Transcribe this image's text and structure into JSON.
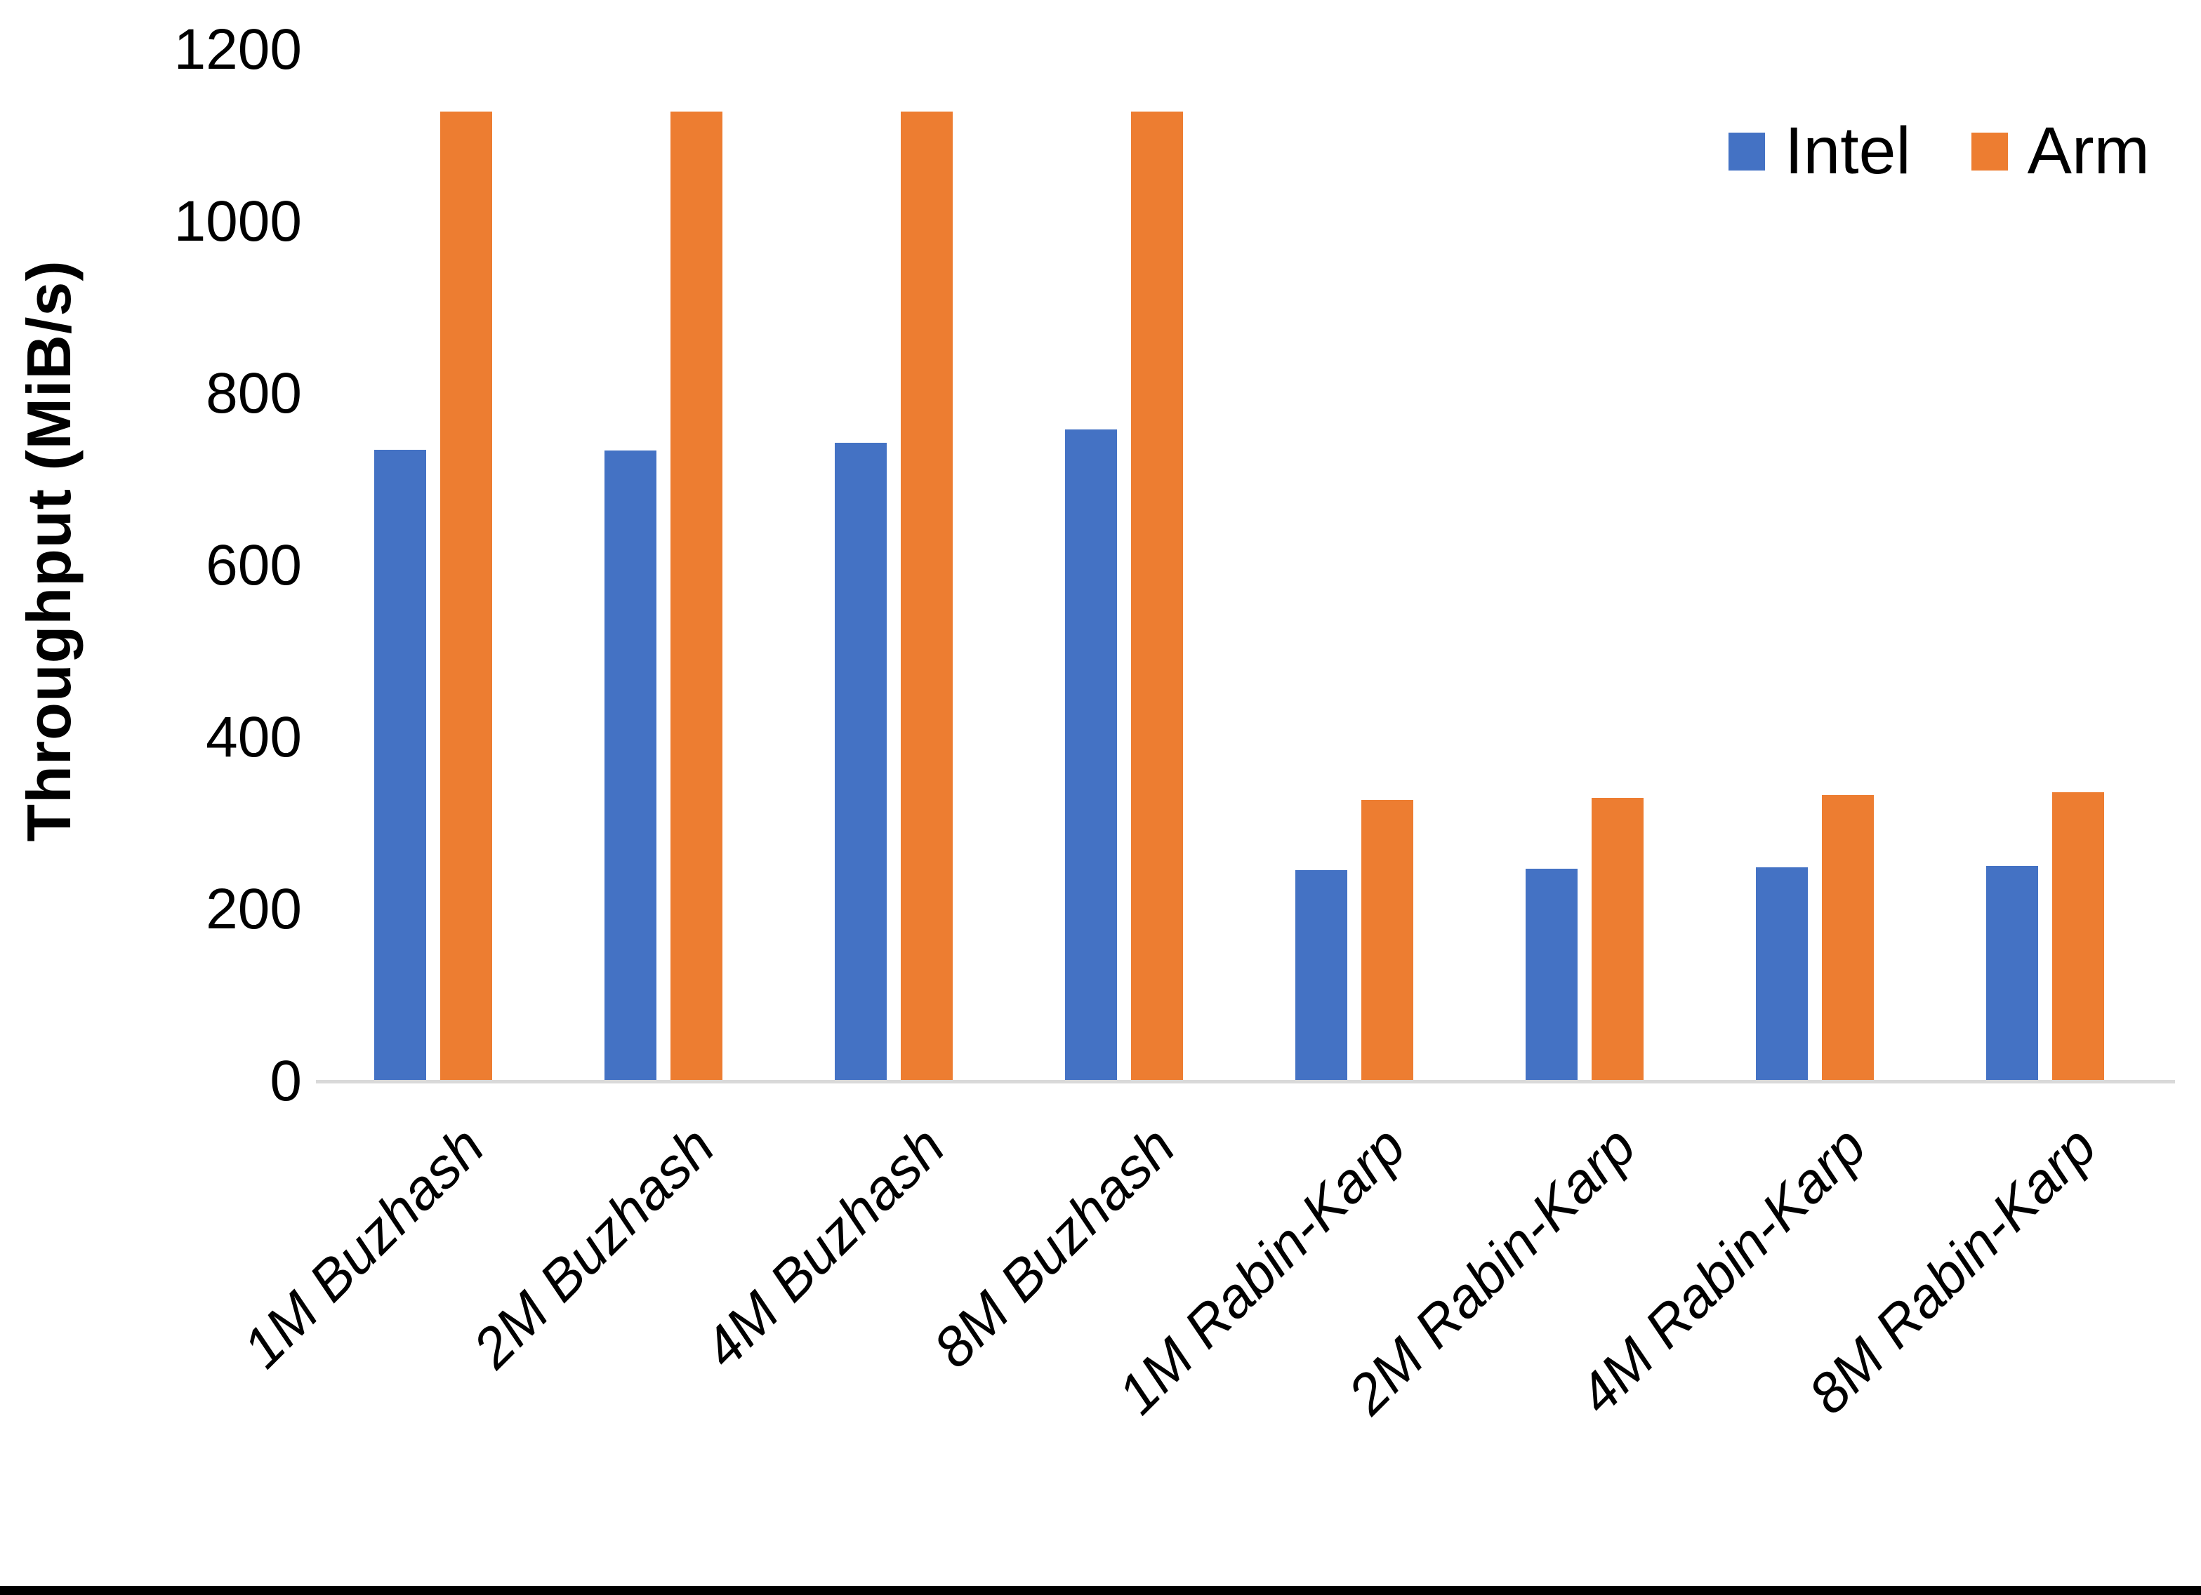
{
  "chart_data": {
    "type": "bar",
    "title": "",
    "xlabel": "",
    "ylabel": "Throughput (MiB/s)",
    "ylim": [
      0,
      1200
    ],
    "yticks": [
      0,
      200,
      400,
      600,
      800,
      1000,
      1200
    ],
    "grid": false,
    "legend_position": "top-right",
    "axis_line_color": "#d9d9d9",
    "categories": [
      "1M Buzhash",
      "2M Buzhash",
      "4M Buzhash",
      "8M Buzhash",
      "1M Rabin-Karp",
      "2M Rabin-Karp",
      "4M Rabin-Karp",
      "8M Rabin-Karp"
    ],
    "series": [
      {
        "name": "Intel",
        "color": "#4472C4",
        "values": [
          735,
          734,
          743,
          758,
          246,
          247,
          249,
          251
        ]
      },
      {
        "name": "Arm",
        "color": "#ED7D31",
        "values": [
          1128,
          1128,
          1128,
          1128,
          327,
          330,
          333,
          336
        ]
      }
    ]
  }
}
